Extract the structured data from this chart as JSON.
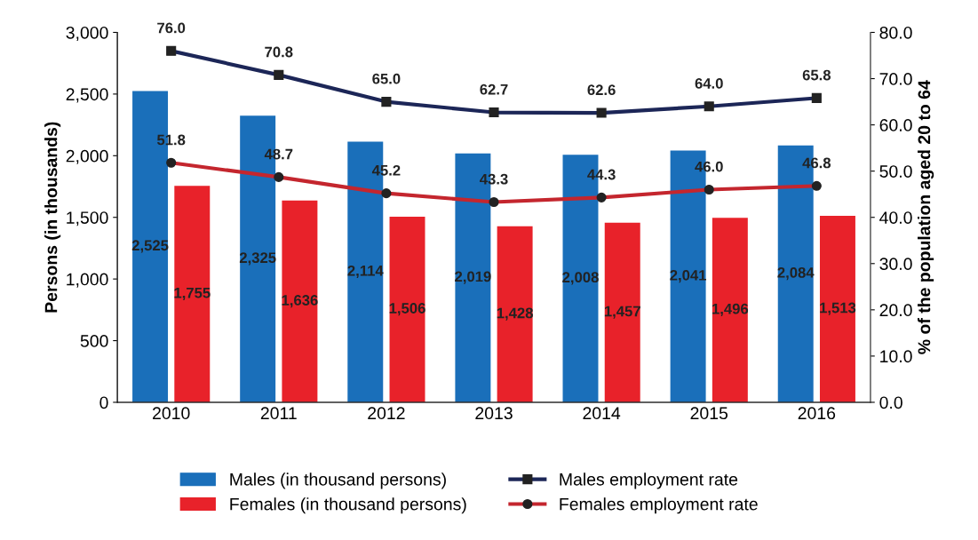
{
  "chart_data": {
    "type": "bar",
    "categories": [
      "2010",
      "2011",
      "2012",
      "2013",
      "2014",
      "2015",
      "2016"
    ],
    "ylabel": "Persons (in thousands)",
    "y2label": "% of the population aged 20 to 64",
    "ylim": [
      0,
      3000
    ],
    "yticks": [
      0,
      500,
      {
        "value": 1000,
        "label": "1,000"
      },
      {
        "value": 1500,
        "label": "1,500"
      },
      {
        "value": 2000,
        "label": "2,000"
      },
      {
        "value": 2500,
        "label": "2,500"
      },
      {
        "value": 3000,
        "label": "3,000"
      }
    ],
    "y2lim": [
      0,
      80
    ],
    "y2ticks": [
      {
        "value": 0,
        "label": "0.0"
      },
      {
        "value": 10,
        "label": "10.0"
      },
      {
        "value": 20,
        "label": "20.0"
      },
      {
        "value": 30,
        "label": "30.0"
      },
      {
        "value": 40,
        "label": "40.0"
      },
      {
        "value": 50,
        "label": "50.0"
      },
      {
        "value": 60,
        "label": "60.0"
      },
      {
        "value": 70,
        "label": "70.0"
      },
      {
        "value": 80,
        "label": "80.0"
      }
    ],
    "grid": false,
    "legend": "bottom",
    "series": [
      {
        "name": "Males (in thousand persons)",
        "color": "#1a6fba",
        "values": [
          2525,
          2325,
          2114,
          2019,
          2008,
          2041,
          2084
        ],
        "value_labels": [
          "2,525",
          "2,325",
          "2,114",
          "2,019",
          "2,008",
          "2,041",
          "2,084"
        ]
      },
      {
        "name": "Females (in thousand persons)",
        "color": "#e8222a",
        "values": [
          1755,
          1636,
          1506,
          1428,
          1457,
          1496,
          1513
        ],
        "value_labels": [
          "1,755",
          "1,636",
          "1,506",
          "1,428",
          "1,457",
          "1,496",
          "1,513"
        ]
      },
      {
        "name": "Males employment rate",
        "type": "line",
        "axis": "y2",
        "color": "#1c2657",
        "marker": "square",
        "values": [
          76.0,
          70.8,
          65.0,
          62.7,
          62.6,
          64.0,
          65.8
        ],
        "value_labels": [
          "76.0",
          "70.8",
          "65.0",
          "62.7",
          "62.6",
          "64.0",
          "65.8"
        ]
      },
      {
        "name": "Females employment rate",
        "type": "line",
        "axis": "y2",
        "color": "#c4262e",
        "marker": "circle",
        "values": [
          51.8,
          48.7,
          45.2,
          43.3,
          44.3,
          46.0,
          46.8
        ],
        "value_labels": [
          "51.8",
          "48.7",
          "45.2",
          "43.3",
          "44.3",
          "46.0",
          "46.8"
        ]
      }
    ]
  }
}
